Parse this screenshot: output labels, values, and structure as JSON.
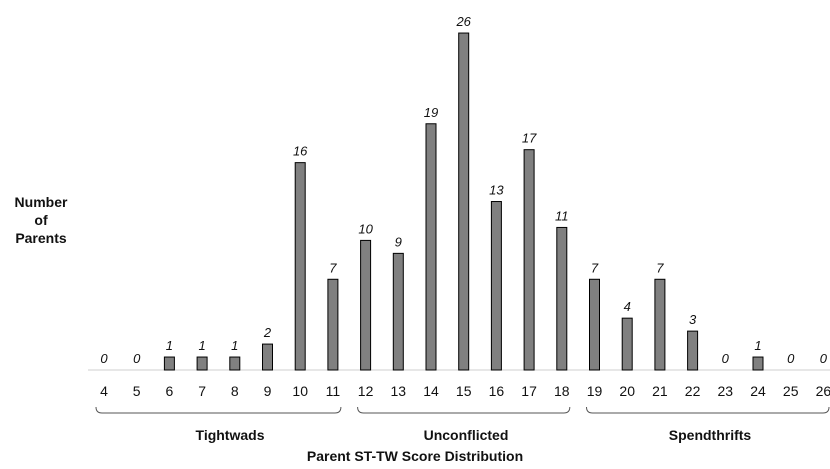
{
  "chart_data": {
    "type": "bar",
    "ylabel_lines": [
      "Number",
      "of",
      "Parents"
    ],
    "xlabel": "Parent ST-TW Score Distribution",
    "categories": [
      "4",
      "5",
      "6",
      "7",
      "8",
      "9",
      "10",
      "11",
      "12",
      "13",
      "14",
      "15",
      "16",
      "17",
      "18",
      "19",
      "20",
      "21",
      "22",
      "23",
      "24",
      "25",
      "26"
    ],
    "values": [
      0,
      0,
      1,
      1,
      1,
      2,
      16,
      7,
      10,
      9,
      19,
      26,
      13,
      17,
      11,
      7,
      4,
      7,
      3,
      0,
      1,
      0,
      0
    ],
    "groups": [
      {
        "label": "Tightwads",
        "from": "4",
        "to": "11"
      },
      {
        "label": "Unconflicted",
        "from": "12",
        "to": "18"
      },
      {
        "label": "Spendthrifts",
        "from": "19",
        "to": "26"
      }
    ],
    "bar_color": "#808080",
    "ylim": [
      0,
      26
    ]
  }
}
